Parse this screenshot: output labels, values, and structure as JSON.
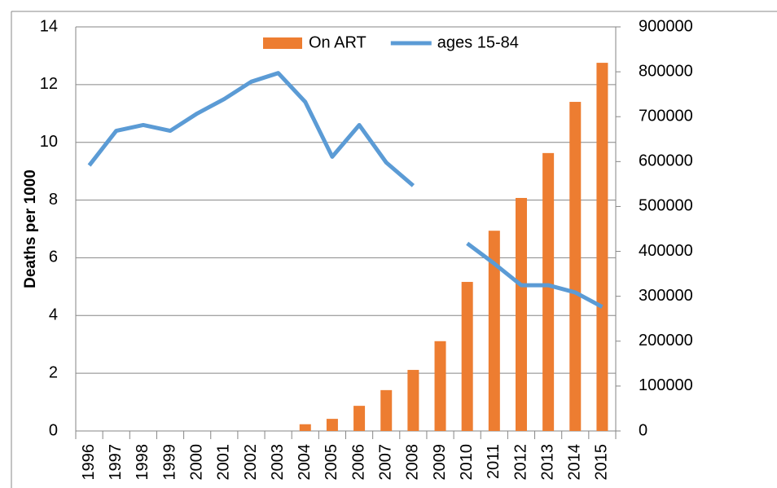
{
  "chart_data": {
    "type": "bar-line",
    "y_label": "Deaths per 1000",
    "categories": [
      "1996",
      "1997",
      "1998",
      "1999",
      "2000",
      "2001",
      "2002",
      "2003",
      "2004",
      "2005",
      "2006",
      "2007",
      "2008",
      "2009",
      "2010",
      "2011",
      "2012",
      "2013",
      "2014",
      "2015"
    ],
    "series": [
      {
        "name": "On ART",
        "type": "bar",
        "axis": "y2",
        "color": "#ed7d31",
        "values": [
          null,
          null,
          null,
          null,
          null,
          null,
          null,
          null,
          15000,
          27000,
          56000,
          91000,
          136000,
          200000,
          332000,
          446000,
          519000,
          619000,
          733000,
          820000
        ]
      },
      {
        "name": "ages 15-84",
        "type": "line",
        "axis": "y",
        "color": "#5b9bd5",
        "values": [
          9.2,
          10.4,
          10.6,
          10.4,
          11.0,
          11.5,
          12.1,
          12.4,
          11.4,
          9.5,
          10.6,
          9.3,
          8.5,
          null,
          6.5,
          5.8,
          5.05,
          5.05,
          4.8,
          4.3
        ]
      }
    ],
    "ylim": [
      0,
      14
    ],
    "yticks": [
      0,
      2,
      4,
      6,
      8,
      10,
      12,
      14
    ],
    "y2lim": [
      0,
      900000
    ],
    "y2ticks": [
      0,
      100000,
      200000,
      300000,
      400000,
      500000,
      600000,
      700000,
      800000,
      900000
    ],
    "grid": true,
    "legend": "top"
  }
}
